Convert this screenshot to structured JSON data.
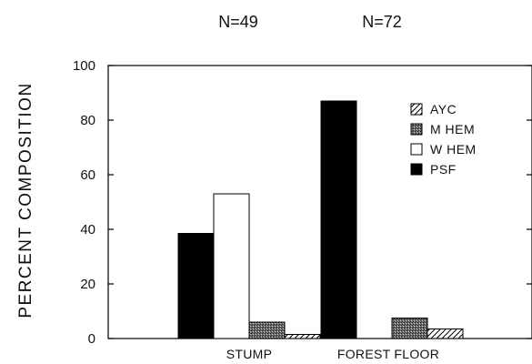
{
  "chart_data": {
    "type": "bar",
    "ylabel": "PERCENT COMPOSITION",
    "ylim": [
      0,
      100
    ],
    "yticks": [
      0,
      20,
      40,
      60,
      80,
      100
    ],
    "ytick_labels": [
      "0",
      "20",
      "40",
      "60",
      "80",
      "100"
    ],
    "categories": [
      "STUMP",
      "FOREST FLOOR"
    ],
    "sample_sizes": [
      "N=49",
      "N=72"
    ],
    "series": [
      {
        "name": "AYC",
        "values": [
          1.5,
          3.5
        ],
        "fill": "hatch-diagonal"
      },
      {
        "name": "M HEM",
        "values": [
          6,
          7.5
        ],
        "fill": "stipple-gray"
      },
      {
        "name": "W HEM",
        "values": [
          53,
          0
        ],
        "fill": "#ffffff"
      },
      {
        "name": "PSF",
        "values": [
          38.5,
          87
        ],
        "fill": "#000000"
      }
    ],
    "bar_order": [
      "PSF",
      "W HEM",
      "M HEM",
      "AYC"
    ],
    "legend_order": [
      "AYC",
      "M HEM",
      "W HEM",
      "PSF"
    ],
    "legend_position": "top-right",
    "grid": false
  }
}
